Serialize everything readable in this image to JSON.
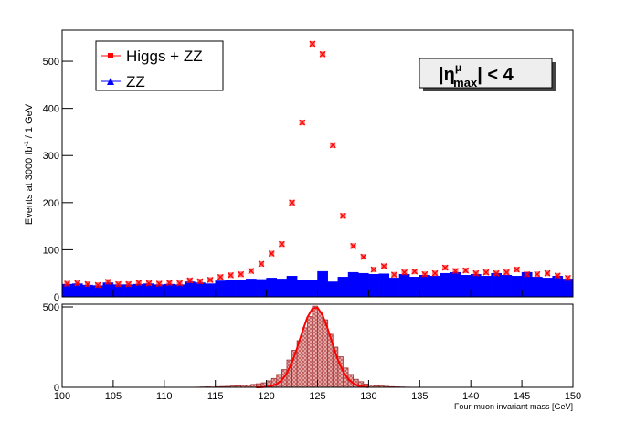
{
  "chart_data": [
    {
      "type": "histogram",
      "bins": [
        100,
        101,
        102,
        103,
        104,
        105,
        106,
        107,
        108,
        109,
        110,
        111,
        112,
        113,
        114,
        115,
        116,
        117,
        118,
        119,
        120,
        121,
        122,
        123,
        124,
        125,
        126,
        127,
        128,
        129,
        130,
        131,
        132,
        133,
        134,
        135,
        136,
        137,
        138,
        139,
        140,
        141,
        142,
        143,
        144,
        145,
        146,
        147,
        148,
        149,
        150
      ],
      "y_label": [
        "Events at 3000 fb",
        "-1",
        " / 1 GeV"
      ],
      "annotation": [
        "|η",
        "μ",
        "max",
        "| < 4"
      ],
      "series": [
        {
          "name": "Higgs + ZZ",
          "color": "#ff0000",
          "style": "marker",
          "values": [
            28,
            29,
            27,
            25,
            32,
            27,
            27,
            30,
            29,
            28,
            30,
            29,
            35,
            33,
            36,
            42,
            46,
            48,
            55,
            70,
            92,
            112,
            200,
            370,
            537,
            515,
            322,
            172,
            108,
            85,
            58,
            65,
            47,
            52,
            54,
            48,
            50,
            62,
            55,
            56,
            50,
            52,
            50,
            52,
            58,
            48,
            48,
            50,
            45,
            40
          ]
        },
        {
          "name": "ZZ",
          "color": "#0000ff",
          "style": "fill",
          "values": [
            27,
            28,
            25,
            24,
            30,
            26,
            26,
            27,
            28,
            26,
            27,
            26,
            32,
            30,
            28,
            34,
            35,
            36,
            38,
            37,
            40,
            38,
            44,
            36,
            35,
            54,
            32,
            42,
            52,
            50,
            48,
            49,
            40,
            48,
            42,
            46,
            44,
            50,
            52,
            46,
            48,
            44,
            50,
            46,
            44,
            52,
            42,
            40,
            44,
            38
          ]
        }
      ],
      "xlim": [
        100,
        150
      ],
      "ylim": [
        0,
        566
      ],
      "yticks": [
        0,
        100,
        200,
        300,
        400,
        500
      ],
      "xticks": [
        100,
        105,
        110,
        115,
        120,
        125,
        130,
        135,
        140,
        145,
        150
      ]
    },
    {
      "type": "histogram",
      "x_label": "Four-muon invariant mass [GeV]",
      "bins": [
        113,
        113.5,
        114,
        114.5,
        115,
        115.5,
        116,
        116.5,
        117,
        117.5,
        118,
        118.5,
        119,
        119.5,
        120,
        120.5,
        121,
        121.5,
        122,
        122.5,
        123,
        123.5,
        124,
        124.5,
        125,
        125.5,
        126,
        126.5,
        127,
        127.5,
        128,
        128.5,
        129,
        129.5,
        130,
        130.5,
        131,
        131.5,
        132,
        132.5,
        133,
        133.5,
        134
      ],
      "values": [
        1,
        2,
        3,
        2,
        4,
        5,
        6,
        8,
        10,
        12,
        14,
        18,
        22,
        28,
        40,
        55,
        80,
        110,
        170,
        230,
        290,
        370,
        440,
        505,
        470,
        420,
        330,
        250,
        190,
        120,
        80,
        50,
        35,
        20,
        14,
        10,
        8,
        6,
        4,
        3,
        2,
        1
      ],
      "color": "#d98c8c",
      "fit": {
        "color": "#ff0000",
        "x": [
          119,
          119.5,
          120,
          120.5,
          121,
          121.5,
          122,
          122.5,
          123,
          123.5,
          124,
          124.5,
          125,
          125.5,
          126,
          126.5,
          127,
          127.5,
          128,
          128.5,
          129,
          129.5,
          130
        ],
        "values": [
          0.3,
          1,
          3,
          8,
          20,
          44,
          88,
          154,
          243,
          343,
          434,
          490,
          496,
          448,
          363,
          263,
          170,
          99,
          51,
          24,
          10,
          4,
          1
        ]
      },
      "xlim": [
        100,
        150
      ],
      "ylim": [
        0,
        517
      ],
      "yticks": [
        0,
        500
      ],
      "xticks": [
        100,
        105,
        110,
        115,
        120,
        125,
        130,
        135,
        140,
        145,
        150
      ]
    }
  ]
}
